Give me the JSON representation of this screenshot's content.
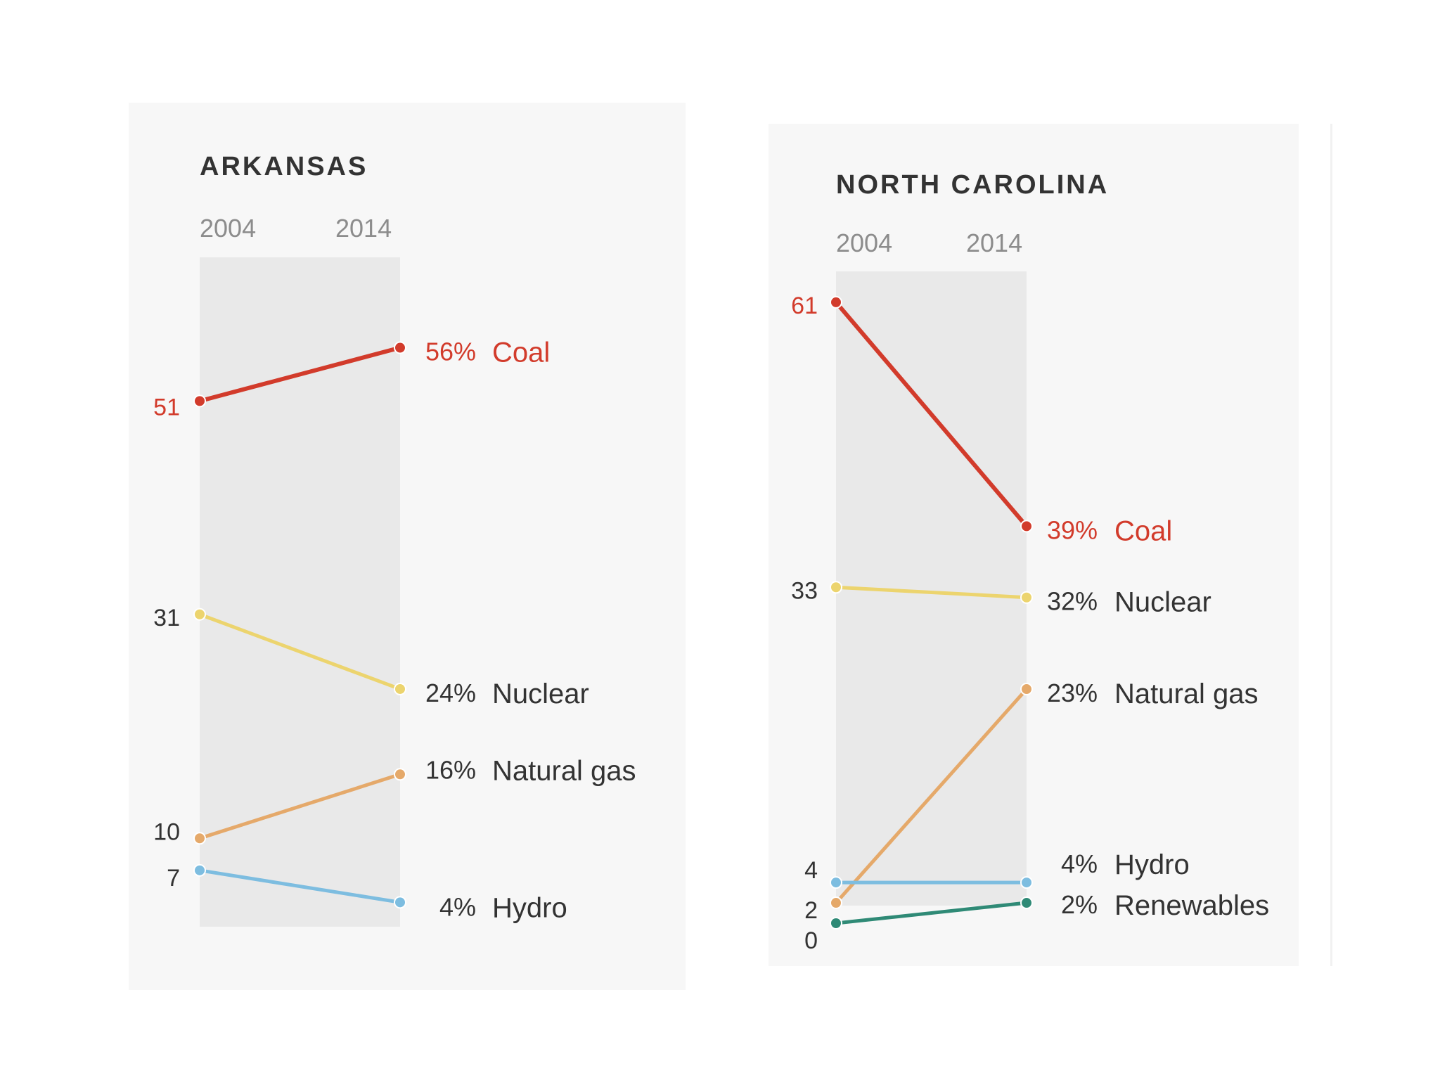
{
  "colors": {
    "coal": "#d23b2b",
    "nuclear": "#ecd46e",
    "natural_gas": "#e5a96a",
    "hydro": "#7dbde0",
    "renewables": "#2f8a76",
    "label_dark": "#333333",
    "axis_label": "#8c8c8c"
  },
  "chart_data": [
    {
      "type": "slope",
      "title": "ARKANSAS",
      "categories": [
        "2004",
        "2014"
      ],
      "ylim": [
        0,
        65
      ],
      "series": [
        {
          "name": "Coal",
          "color_key": "coal",
          "values": [
            51,
            56
          ],
          "start_label": "51",
          "end_label": "56%",
          "highlight": true
        },
        {
          "name": "Nuclear",
          "color_key": "nuclear",
          "values": [
            31,
            24
          ],
          "start_label": "31",
          "end_label": "24%",
          "highlight": false
        },
        {
          "name": "Natural gas",
          "color_key": "natural_gas",
          "values": [
            10,
            16
          ],
          "start_label": "10",
          "end_label": "16%",
          "highlight": false
        },
        {
          "name": "Hydro",
          "color_key": "hydro",
          "values": [
            7,
            4
          ],
          "start_label": "7",
          "end_label": "4%",
          "highlight": false
        }
      ]
    },
    {
      "type": "slope",
      "title": "NORTH CAROLINA",
      "categories": [
        "2004",
        "2014"
      ],
      "ylim": [
        0,
        65
      ],
      "series": [
        {
          "name": "Coal",
          "color_key": "coal",
          "values": [
            61,
            39
          ],
          "start_label": "61",
          "end_label": "39%",
          "highlight": true
        },
        {
          "name": "Nuclear",
          "color_key": "nuclear",
          "values": [
            33,
            32
          ],
          "start_label": "33",
          "end_label": "32%",
          "highlight": false
        },
        {
          "name": "Natural gas",
          "color_key": "natural_gas",
          "values": [
            2,
            23
          ],
          "start_label": "2",
          "end_label": "23%",
          "highlight": false
        },
        {
          "name": "Hydro",
          "color_key": "hydro",
          "values": [
            4,
            4
          ],
          "start_label": "4",
          "end_label": "4%",
          "highlight": false
        },
        {
          "name": "Renewables",
          "color_key": "renewables",
          "values": [
            0,
            2
          ],
          "start_label": "0",
          "end_label": "2%",
          "highlight": false
        }
      ]
    }
  ]
}
